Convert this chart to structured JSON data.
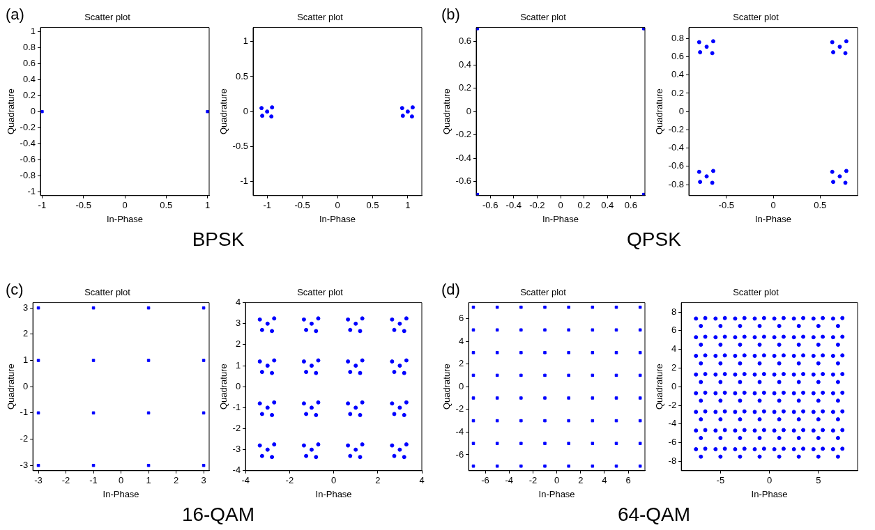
{
  "chart_data": [
    {
      "type": "scatter",
      "title": "Scatter plot",
      "xlabel": "In-Phase",
      "ylabel": "Quadrature",
      "annotations": [
        "(a)",
        "BPSK"
      ],
      "marker": "square",
      "grid": false,
      "legend": false,
      "xlim": [
        -1.02,
        1.02
      ],
      "ylim": [
        -1.05,
        1.05
      ],
      "xticks": [
        -1,
        -0.5,
        0,
        0.5,
        1
      ],
      "yticks": [
        -1,
        -0.8,
        -0.6,
        -0.4,
        -0.2,
        0,
        0.2,
        0.4,
        0.6,
        0.8,
        1
      ],
      "series": [
        {
          "color": "#0000ff",
          "x": [
            -1,
            1
          ],
          "values": [
            0,
            0
          ]
        }
      ]
    },
    {
      "type": "scatter",
      "title": "Scatter plot",
      "xlabel": "In-Phase",
      "ylabel": "Quadrature",
      "marker": "circle",
      "grid": false,
      "legend": false,
      "xlim": [
        -1.2,
        1.2
      ],
      "ylim": [
        -1.2,
        1.2
      ],
      "xticks": [
        -1,
        -0.5,
        0,
        0.5,
        1
      ],
      "yticks": [
        -1,
        -0.5,
        0,
        0.5,
        1
      ],
      "series": [
        {
          "color": "#0000ff",
          "x": [
            -1,
            -1.08,
            -0.93,
            -0.94,
            -1.07,
            1,
            0.92,
            1.07,
            1.06,
            0.93
          ],
          "values": [
            0,
            0.05,
            0.06,
            -0.07,
            -0.06,
            0,
            0.05,
            0.06,
            -0.07,
            -0.06
          ]
        }
      ]
    },
    {
      "type": "scatter",
      "title": "Scatter plot",
      "xlabel": "In-Phase",
      "ylabel": "Quadrature",
      "annotations": [
        "(b)",
        "QPSK"
      ],
      "marker": "square",
      "grid": false,
      "legend": false,
      "xlim": [
        -0.72,
        0.72
      ],
      "ylim": [
        -0.72,
        0.72
      ],
      "xticks": [
        -0.6,
        -0.4,
        -0.2,
        0,
        0.2,
        0.4,
        0.6
      ],
      "yticks": [
        -0.6,
        -0.4,
        -0.2,
        0,
        0.2,
        0.4,
        0.6
      ],
      "series": [
        {
          "color": "#0000ff",
          "x": [
            -0.71,
            0.71,
            -0.71,
            0.71
          ],
          "values": [
            0.71,
            0.71,
            -0.71,
            -0.71
          ]
        }
      ]
    },
    {
      "type": "scatter",
      "title": "Scatter plot",
      "xlabel": "In-Phase",
      "ylabel": "Quadrature",
      "marker": "circle",
      "grid": false,
      "legend": false,
      "xlim": [
        -0.9,
        0.9
      ],
      "ylim": [
        -0.92,
        0.92
      ],
      "xticks": [
        -0.5,
        0,
        0.5
      ],
      "yticks": [
        -0.8,
        -0.6,
        -0.4,
        -0.2,
        0,
        0.2,
        0.4,
        0.6,
        0.8
      ],
      "series": [
        {
          "color": "#0000ff",
          "x": [
            -0.71,
            -0.79,
            -0.64,
            -0.65,
            -0.78,
            0.71,
            0.63,
            0.78,
            0.77,
            0.64,
            -0.71,
            -0.79,
            -0.64,
            -0.65,
            -0.78,
            0.71,
            0.63,
            0.78,
            0.77,
            0.64
          ],
          "values": [
            0.71,
            0.76,
            0.77,
            0.64,
            0.65,
            0.71,
            0.76,
            0.77,
            0.64,
            0.65,
            -0.71,
            -0.66,
            -0.65,
            -0.78,
            -0.77,
            -0.71,
            -0.66,
            -0.65,
            -0.78,
            -0.77
          ]
        }
      ]
    },
    {
      "type": "scatter",
      "title": "Scatter plot",
      "xlabel": "In-Phase",
      "ylabel": "Quadrature",
      "annotations": [
        "(c)",
        "16-QAM"
      ],
      "marker": "square",
      "grid": false,
      "legend": false,
      "xlim": [
        -3.2,
        3.2
      ],
      "ylim": [
        -3.2,
        3.2
      ],
      "xticks": [
        -3,
        -2,
        -1,
        0,
        1,
        2,
        3
      ],
      "yticks": [
        -3,
        -2,
        -1,
        0,
        1,
        2,
        3
      ],
      "series": [
        {
          "color": "#0000ff",
          "x": [
            -3,
            -1,
            1,
            3,
            -3,
            -1,
            1,
            3,
            -3,
            -1,
            1,
            3,
            -3,
            -1,
            1,
            3
          ],
          "values": [
            3,
            3,
            3,
            3,
            1,
            1,
            1,
            1,
            -1,
            -1,
            -1,
            -1,
            -3,
            -3,
            -3,
            -3
          ]
        }
      ]
    },
    {
      "type": "scatter",
      "title": "Scatter plot",
      "xlabel": "In-Phase",
      "ylabel": "Quadrature",
      "marker": "circle",
      "grid": false,
      "legend": false,
      "xlim": [
        -4,
        4
      ],
      "ylim": [
        -4,
        4
      ],
      "xticks": [
        -4,
        -2,
        0,
        2,
        4
      ],
      "yticks": [
        -4,
        -3,
        -2,
        -1,
        0,
        1,
        2,
        3,
        4
      ],
      "series": [
        {
          "color": "#0000ff",
          "x": [
            -3,
            -3.35,
            -2.7,
            -2.8,
            -3.25,
            -1,
            -1.35,
            -0.7,
            -0.8,
            -1.25,
            1,
            0.65,
            1.3,
            1.2,
            0.75,
            3,
            2.65,
            3.3,
            3.2,
            2.75,
            -3,
            -3.35,
            -2.7,
            -2.8,
            -3.25,
            -1,
            -1.35,
            -0.7,
            -0.8,
            -1.25,
            1,
            0.65,
            1.3,
            1.2,
            0.75,
            3,
            2.65,
            3.3,
            3.2,
            2.75,
            -3,
            -3.35,
            -2.7,
            -2.8,
            -3.25,
            -1,
            -1.35,
            -0.7,
            -0.8,
            -1.25,
            1,
            0.65,
            1.3,
            1.2,
            0.75,
            3,
            2.65,
            3.3,
            3.2,
            2.75,
            -3,
            -3.35,
            -2.7,
            -2.8,
            -3.25,
            -1,
            -1.35,
            -0.7,
            -0.8,
            -1.25,
            1,
            0.65,
            1.3,
            1.2,
            0.75,
            3,
            2.65,
            3.3,
            3.2,
            2.75
          ],
          "values": [
            3,
            3.2,
            3.25,
            2.65,
            2.7,
            3,
            3.2,
            3.25,
            2.65,
            2.7,
            3,
            3.2,
            3.25,
            2.65,
            2.7,
            3,
            3.2,
            3.25,
            2.65,
            2.7,
            1,
            1.2,
            1.25,
            0.65,
            0.7,
            1,
            1.2,
            1.25,
            0.65,
            0.7,
            1,
            1.2,
            1.25,
            0.65,
            0.7,
            1,
            1.2,
            1.25,
            0.65,
            0.7,
            -1,
            -0.8,
            -0.75,
            -1.35,
            -1.3,
            -1,
            -0.8,
            -0.75,
            -1.35,
            -1.3,
            -1,
            -0.8,
            -0.75,
            -1.35,
            -1.3,
            -1,
            -0.8,
            -0.75,
            -1.35,
            -1.3,
            -3,
            -2.8,
            -2.75,
            -3.35,
            -3.3,
            -3,
            -2.8,
            -2.75,
            -3.35,
            -3.3,
            -3,
            -2.8,
            -2.75,
            -3.35,
            -3.3,
            -3,
            -2.8,
            -2.75,
            -3.35,
            -3.3
          ]
        }
      ]
    },
    {
      "type": "scatter",
      "title": "Scatter plot",
      "xlabel": "In-Phase",
      "ylabel": "Quadrature",
      "annotations": [
        "(d)",
        "64-QAM"
      ],
      "marker": "square",
      "grid": false,
      "legend": false,
      "xlim": [
        -7.4,
        7.4
      ],
      "ylim": [
        -7.4,
        7.4
      ],
      "xticks": [
        -6,
        -4,
        -2,
        0,
        2,
        4,
        6
      ],
      "yticks": [
        -6,
        -4,
        -2,
        0,
        2,
        4,
        6
      ],
      "series": [
        {
          "color": "#0000ff",
          "x": [
            -7,
            -5,
            -3,
            -1,
            1,
            3,
            5,
            7,
            -7,
            -5,
            -3,
            -1,
            1,
            3,
            5,
            7,
            -7,
            -5,
            -3,
            -1,
            1,
            3,
            5,
            7,
            -7,
            -5,
            -3,
            -1,
            1,
            3,
            5,
            7,
            -7,
            -5,
            -3,
            -1,
            1,
            3,
            5,
            7,
            -7,
            -5,
            -3,
            -1,
            1,
            3,
            5,
            7,
            -7,
            -5,
            -3,
            -1,
            1,
            3,
            5,
            7,
            -7,
            -5,
            -3,
            -1,
            1,
            3,
            5,
            7
          ],
          "values": [
            7,
            7,
            7,
            7,
            7,
            7,
            7,
            7,
            5,
            5,
            5,
            5,
            5,
            5,
            5,
            5,
            3,
            3,
            3,
            3,
            3,
            3,
            3,
            3,
            1,
            1,
            1,
            1,
            1,
            1,
            1,
            1,
            -1,
            -1,
            -1,
            -1,
            -1,
            -1,
            -1,
            -1,
            -3,
            -3,
            -3,
            -3,
            -3,
            -3,
            -3,
            -3,
            -5,
            -5,
            -5,
            -5,
            -5,
            -5,
            -5,
            -5,
            -7,
            -7,
            -7,
            -7,
            -7,
            -7,
            -7,
            -7
          ]
        }
      ]
    },
    {
      "type": "scatter",
      "title": "Scatter plot",
      "xlabel": "In-Phase",
      "ylabel": "Quadrature",
      "marker": "circle",
      "grid": false,
      "legend": false,
      "xlim": [
        -9,
        9
      ],
      "ylim": [
        -9,
        9
      ],
      "xticks": [
        -5,
        0,
        5
      ],
      "yticks": [
        -8,
        -6,
        -4,
        -2,
        0,
        2,
        4,
        6,
        8
      ],
      "series": [
        {
          "color": "#0000ff",
          "x": [
            -7.5,
            -6.55,
            -7,
            -5.5,
            -4.55,
            -5,
            -3.5,
            -2.55,
            -3,
            -1.5,
            -0.55,
            -1,
            0.5,
            1.45,
            1,
            2.5,
            3.45,
            3,
            4.5,
            5.45,
            5,
            6.5,
            7.45,
            7,
            -7.5,
            -6.55,
            -7,
            -5.5,
            -4.55,
            -5,
            -3.5,
            -2.55,
            -3,
            -1.5,
            -0.55,
            -1,
            0.5,
            1.45,
            1,
            2.5,
            3.45,
            3,
            4.5,
            5.45,
            5,
            6.5,
            7.45,
            7,
            -7.5,
            -6.55,
            -7,
            -5.5,
            -4.55,
            -5,
            -3.5,
            -2.55,
            -3,
            -1.5,
            -0.55,
            -1,
            0.5,
            1.45,
            1,
            2.5,
            3.45,
            3,
            4.5,
            5.45,
            5,
            6.5,
            7.45,
            7,
            -7.5,
            -6.55,
            -7,
            -5.5,
            -4.55,
            -5,
            -3.5,
            -2.55,
            -3,
            -1.5,
            -0.55,
            -1,
            0.5,
            1.45,
            1,
            2.5,
            3.45,
            3,
            4.5,
            5.45,
            5,
            6.5,
            7.45,
            7,
            -7.5,
            -6.55,
            -7,
            -5.5,
            -4.55,
            -5,
            -3.5,
            -2.55,
            -3,
            -1.5,
            -0.55,
            -1,
            0.5,
            1.45,
            1,
            2.5,
            3.45,
            3,
            4.5,
            5.45,
            5,
            6.5,
            7.45,
            7,
            -7.5,
            -6.55,
            -7,
            -5.5,
            -4.55,
            -5,
            -3.5,
            -2.55,
            -3,
            -1.5,
            -0.55,
            -1,
            0.5,
            1.45,
            1,
            2.5,
            3.45,
            3,
            4.5,
            5.45,
            5,
            6.5,
            7.45,
            7,
            -7.5,
            -6.55,
            -7,
            -5.5,
            -4.55,
            -5,
            -3.5,
            -2.55,
            -3,
            -1.5,
            -0.55,
            -1,
            0.5,
            1.45,
            1,
            2.5,
            3.45,
            3,
            4.5,
            5.45,
            5,
            6.5,
            7.45,
            7,
            -7.5,
            -6.55,
            -7,
            -5.5,
            -4.55,
            -5,
            -3.5,
            -2.55,
            -3,
            -1.5,
            -0.55,
            -1,
            0.5,
            1.45,
            1,
            2.5,
            3.45,
            3,
            4.5,
            5.45,
            5,
            6.5,
            7.45,
            7
          ],
          "values": [
            7.3,
            7.35,
            6.5,
            7.3,
            7.35,
            6.5,
            7.3,
            7.35,
            6.5,
            7.3,
            7.35,
            6.5,
            7.3,
            7.35,
            6.5,
            7.3,
            7.35,
            6.5,
            7.3,
            7.35,
            6.5,
            7.3,
            7.35,
            6.5,
            5.3,
            5.35,
            4.5,
            5.3,
            5.35,
            4.5,
            5.3,
            5.35,
            4.5,
            5.3,
            5.35,
            4.5,
            5.3,
            5.35,
            4.5,
            5.3,
            5.35,
            4.5,
            5.3,
            5.35,
            4.5,
            5.3,
            5.35,
            4.5,
            3.3,
            3.35,
            2.5,
            3.3,
            3.35,
            2.5,
            3.3,
            3.35,
            2.5,
            3.3,
            3.35,
            2.5,
            3.3,
            3.35,
            2.5,
            3.3,
            3.35,
            2.5,
            3.3,
            3.35,
            2.5,
            3.3,
            3.35,
            2.5,
            1.3,
            1.35,
            0.5,
            1.3,
            1.35,
            0.5,
            1.3,
            1.35,
            0.5,
            1.3,
            1.35,
            0.5,
            1.3,
            1.35,
            0.5,
            1.3,
            1.35,
            0.5,
            1.3,
            1.35,
            0.5,
            1.3,
            1.35,
            0.5,
            -0.7,
            -0.65,
            -1.5,
            -0.7,
            -0.65,
            -1.5,
            -0.7,
            -0.65,
            -1.5,
            -0.7,
            -0.65,
            -1.5,
            -0.7,
            -0.65,
            -1.5,
            -0.7,
            -0.65,
            -1.5,
            -0.7,
            -0.65,
            -1.5,
            -0.7,
            -0.65,
            -1.5,
            -2.7,
            -2.65,
            -3.5,
            -2.7,
            -2.65,
            -3.5,
            -2.7,
            -2.65,
            -3.5,
            -2.7,
            -2.65,
            -3.5,
            -2.7,
            -2.65,
            -3.5,
            -2.7,
            -2.65,
            -3.5,
            -2.7,
            -2.65,
            -3.5,
            -2.7,
            -2.65,
            -3.5,
            -4.7,
            -4.65,
            -5.5,
            -4.7,
            -4.65,
            -5.5,
            -4.7,
            -4.65,
            -5.5,
            -4.7,
            -4.65,
            -5.5,
            -4.7,
            -4.65,
            -5.5,
            -4.7,
            -4.65,
            -5.5,
            -4.7,
            -4.65,
            -5.5,
            -4.7,
            -4.65,
            -5.5,
            -6.7,
            -6.65,
            -7.5,
            -6.7,
            -6.65,
            -7.5,
            -6.7,
            -6.65,
            -7.5,
            -6.7,
            -6.65,
            -7.5,
            -6.7,
            -6.65,
            -7.5,
            -6.7,
            -6.65,
            -7.5,
            -6.7,
            -6.65,
            -7.5,
            -6.7,
            -6.65,
            -7.5
          ]
        }
      ]
    }
  ]
}
